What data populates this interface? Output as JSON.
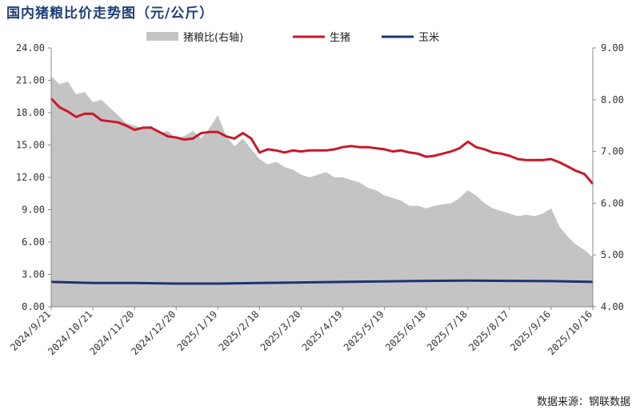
{
  "title": "国内猪粮比价走势图（元/公斤）",
  "source": "数据来源：钢联数据",
  "colors": {
    "area": "#c4c4c4",
    "pig": "#c8182a",
    "corn": "#1c3474",
    "axis": "#888888"
  },
  "chart_data": {
    "type": "line",
    "legend": [
      {
        "name": "猪粮比(右轴)",
        "style": "area",
        "color": "#c4c4c4"
      },
      {
        "name": "生猪",
        "style": "line",
        "color": "#c8182a"
      },
      {
        "name": "玉米",
        "style": "line",
        "color": "#1c3474"
      }
    ],
    "legend_position": "top",
    "x_ticks": [
      "2024/9/21",
      "2024/10/21",
      "2024/11/20",
      "2024/12/20",
      "2025/1/19",
      "2025/2/18",
      "2025/3/20",
      "2025/4/19",
      "2025/5/19",
      "2025/6/18",
      "2025/7/18",
      "2025/8/17",
      "2025/9/16",
      "2025/10/16"
    ],
    "x_range": [
      "2024-09-21",
      "2025-10-16"
    ],
    "y_left": {
      "min": 0,
      "max": 24,
      "ticks": [
        "0.00",
        "3.00",
        "6.00",
        "9.00",
        "12.00",
        "15.00",
        "18.00",
        "21.00",
        "24.00"
      ]
    },
    "y_right": {
      "min": 4,
      "max": 9,
      "ticks": [
        "4.00",
        "5.00",
        "6.00",
        "7.00",
        "8.00",
        "9.00"
      ]
    },
    "grid": false,
    "series": [
      {
        "name": "猪粮比(右轴)",
        "axis": "right",
        "type": "area",
        "points": [
          [
            "2024-09-21",
            8.45
          ],
          [
            "2024-09-27",
            8.3
          ],
          [
            "2024-10-03",
            8.35
          ],
          [
            "2024-10-09",
            8.1
          ],
          [
            "2024-10-15",
            8.15
          ],
          [
            "2024-10-21",
            7.95
          ],
          [
            "2024-10-27",
            8.0
          ],
          [
            "2024-11-02",
            7.85
          ],
          [
            "2024-11-08",
            7.7
          ],
          [
            "2024-11-14",
            7.55
          ],
          [
            "2024-11-20",
            7.5
          ],
          [
            "2024-11-26",
            7.45
          ],
          [
            "2024-12-02",
            7.5
          ],
          [
            "2024-12-08",
            7.35
          ],
          [
            "2024-12-14",
            7.4
          ],
          [
            "2024-12-20",
            7.25
          ],
          [
            "2024-12-26",
            7.3
          ],
          [
            "2025-01-01",
            7.4
          ],
          [
            "2025-01-07",
            7.25
          ],
          [
            "2025-01-13",
            7.45
          ],
          [
            "2025-01-19",
            7.7
          ],
          [
            "2025-01-25",
            7.3
          ],
          [
            "2025-01-31",
            7.1
          ],
          [
            "2025-02-06",
            7.25
          ],
          [
            "2025-02-12",
            7.05
          ],
          [
            "2025-02-18",
            6.85
          ],
          [
            "2025-02-24",
            6.75
          ],
          [
            "2025-03-02",
            6.8
          ],
          [
            "2025-03-08",
            6.7
          ],
          [
            "2025-03-14",
            6.65
          ],
          [
            "2025-03-20",
            6.55
          ],
          [
            "2025-03-26",
            6.5
          ],
          [
            "2025-04-01",
            6.55
          ],
          [
            "2025-04-07",
            6.6
          ],
          [
            "2025-04-13",
            6.5
          ],
          [
            "2025-04-19",
            6.5
          ],
          [
            "2025-04-25",
            6.45
          ],
          [
            "2025-05-01",
            6.4
          ],
          [
            "2025-05-07",
            6.3
          ],
          [
            "2025-05-13",
            6.25
          ],
          [
            "2025-05-19",
            6.15
          ],
          [
            "2025-05-25",
            6.1
          ],
          [
            "2025-05-31",
            6.05
          ],
          [
            "2025-06-06",
            5.95
          ],
          [
            "2025-06-12",
            5.95
          ],
          [
            "2025-06-18",
            5.9
          ],
          [
            "2025-06-24",
            5.95
          ],
          [
            "2025-06-30",
            5.98
          ],
          [
            "2025-07-06",
            6.0
          ],
          [
            "2025-07-12",
            6.1
          ],
          [
            "2025-07-18",
            6.25
          ],
          [
            "2025-07-24",
            6.15
          ],
          [
            "2025-07-30",
            6.0
          ],
          [
            "2025-08-05",
            5.9
          ],
          [
            "2025-08-11",
            5.85
          ],
          [
            "2025-08-17",
            5.8
          ],
          [
            "2025-08-23",
            5.75
          ],
          [
            "2025-08-29",
            5.78
          ],
          [
            "2025-09-04",
            5.75
          ],
          [
            "2025-09-10",
            5.8
          ],
          [
            "2025-09-16",
            5.9
          ],
          [
            "2025-09-22",
            5.55
          ],
          [
            "2025-09-28",
            5.35
          ],
          [
            "2025-10-04",
            5.2
          ],
          [
            "2025-10-10",
            5.1
          ],
          [
            "2025-10-16",
            4.95
          ]
        ]
      },
      {
        "name": "生猪",
        "axis": "left",
        "type": "line",
        "points": [
          [
            "2024-09-21",
            19.3
          ],
          [
            "2024-09-27",
            18.5
          ],
          [
            "2024-10-03",
            18.1
          ],
          [
            "2024-10-09",
            17.6
          ],
          [
            "2024-10-15",
            17.9
          ],
          [
            "2024-10-21",
            17.9
          ],
          [
            "2024-10-27",
            17.3
          ],
          [
            "2024-11-02",
            17.2
          ],
          [
            "2024-11-08",
            17.1
          ],
          [
            "2024-11-14",
            16.8
          ],
          [
            "2024-11-20",
            16.4
          ],
          [
            "2024-11-26",
            16.6
          ],
          [
            "2024-12-02",
            16.6
          ],
          [
            "2024-12-08",
            16.2
          ],
          [
            "2024-12-14",
            15.8
          ],
          [
            "2024-12-20",
            15.7
          ],
          [
            "2024-12-26",
            15.5
          ],
          [
            "2025-01-01",
            15.6
          ],
          [
            "2025-01-07",
            16.1
          ],
          [
            "2025-01-13",
            16.2
          ],
          [
            "2025-01-19",
            16.2
          ],
          [
            "2025-01-25",
            15.8
          ],
          [
            "2025-01-31",
            15.6
          ],
          [
            "2025-02-06",
            16.1
          ],
          [
            "2025-02-12",
            15.6
          ],
          [
            "2025-02-18",
            14.3
          ],
          [
            "2025-02-24",
            14.6
          ],
          [
            "2025-03-02",
            14.5
          ],
          [
            "2025-03-08",
            14.3
          ],
          [
            "2025-03-14",
            14.5
          ],
          [
            "2025-03-20",
            14.4
          ],
          [
            "2025-03-26",
            14.5
          ],
          [
            "2025-04-01",
            14.5
          ],
          [
            "2025-04-07",
            14.5
          ],
          [
            "2025-04-13",
            14.6
          ],
          [
            "2025-04-19",
            14.8
          ],
          [
            "2025-04-25",
            14.9
          ],
          [
            "2025-05-01",
            14.8
          ],
          [
            "2025-05-07",
            14.8
          ],
          [
            "2025-05-13",
            14.7
          ],
          [
            "2025-05-19",
            14.6
          ],
          [
            "2025-05-25",
            14.4
          ],
          [
            "2025-05-31",
            14.5
          ],
          [
            "2025-06-06",
            14.3
          ],
          [
            "2025-06-12",
            14.2
          ],
          [
            "2025-06-18",
            13.9
          ],
          [
            "2025-06-24",
            14.0
          ],
          [
            "2025-06-30",
            14.2
          ],
          [
            "2025-07-06",
            14.4
          ],
          [
            "2025-07-12",
            14.7
          ],
          [
            "2025-07-18",
            15.3
          ],
          [
            "2025-07-24",
            14.8
          ],
          [
            "2025-07-30",
            14.6
          ],
          [
            "2025-08-05",
            14.3
          ],
          [
            "2025-08-11",
            14.2
          ],
          [
            "2025-08-17",
            14.0
          ],
          [
            "2025-08-23",
            13.7
          ],
          [
            "2025-08-29",
            13.6
          ],
          [
            "2025-09-04",
            13.6
          ],
          [
            "2025-09-10",
            13.6
          ],
          [
            "2025-09-16",
            13.7
          ],
          [
            "2025-09-22",
            13.4
          ],
          [
            "2025-09-28",
            13.0
          ],
          [
            "2025-10-04",
            12.6
          ],
          [
            "2025-10-10",
            12.3
          ],
          [
            "2025-10-16",
            11.4
          ]
        ]
      },
      {
        "name": "玉米",
        "axis": "left",
        "type": "line",
        "points": [
          [
            "2024-09-21",
            2.3
          ],
          [
            "2024-10-21",
            2.2
          ],
          [
            "2024-11-20",
            2.2
          ],
          [
            "2024-12-20",
            2.15
          ],
          [
            "2025-01-19",
            2.15
          ],
          [
            "2025-02-18",
            2.2
          ],
          [
            "2025-03-20",
            2.25
          ],
          [
            "2025-04-19",
            2.3
          ],
          [
            "2025-05-19",
            2.35
          ],
          [
            "2025-06-18",
            2.4
          ],
          [
            "2025-07-18",
            2.42
          ],
          [
            "2025-08-17",
            2.4
          ],
          [
            "2025-09-16",
            2.38
          ],
          [
            "2025-10-16",
            2.3
          ]
        ]
      }
    ]
  }
}
